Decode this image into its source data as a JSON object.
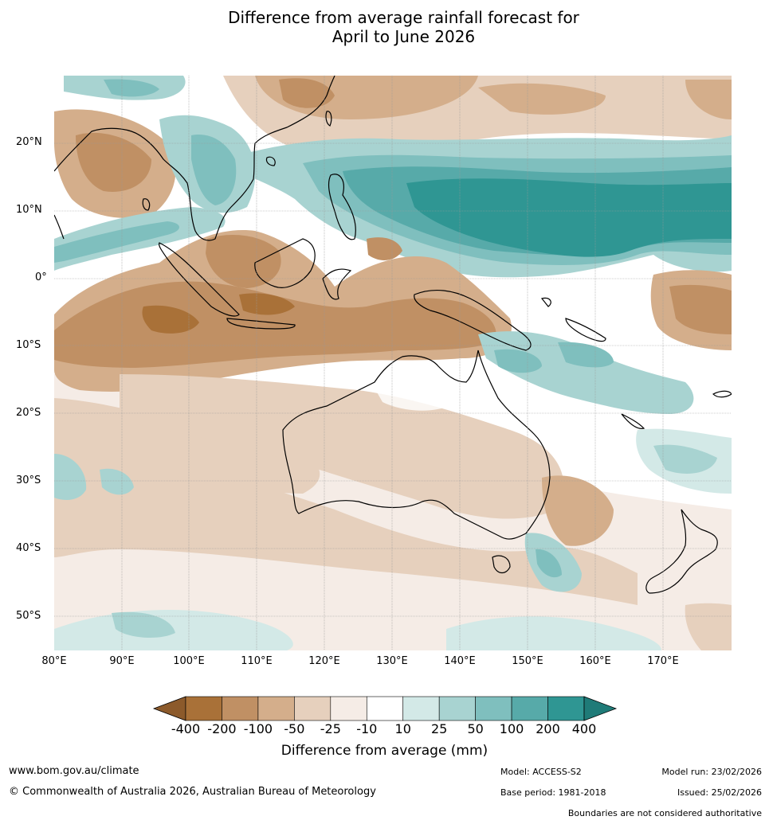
{
  "title": {
    "line1": "Difference from average rainfall forecast for",
    "line2": "April to June 2026"
  },
  "map": {
    "lat_labels": [
      "20°N",
      "10°N",
      "0°",
      "10°S",
      "20°S",
      "30°S",
      "40°S",
      "50°S"
    ],
    "lon_labels": [
      "80°E",
      "90°E",
      "100°E",
      "110°E",
      "120°E",
      "130°E",
      "140°E",
      "150°E",
      "160°E",
      "170°E"
    ]
  },
  "legend": {
    "title": "Difference from average (mm)",
    "ticks": [
      "-400",
      "-200",
      "-100",
      "-50",
      "-25",
      "-10",
      "10",
      "25",
      "50",
      "100",
      "200",
      "400"
    ],
    "colors": [
      "#8c5a2b",
      "#a97138",
      "#c09064",
      "#d4ae8b",
      "#e6d0bd",
      "#f5ece6",
      "#ffffff",
      "#d3e9e7",
      "#a8d3d1",
      "#7fbfbe",
      "#57aaa9",
      "#2f9693",
      "#1f7b78"
    ]
  },
  "footer": {
    "url": "www.bom.gov.au/climate",
    "copyright": "© Commonwealth of Australia 2026, Australian Bureau of Meteorology",
    "model": "Model: ACCESS-S2",
    "base_period": "Base period: 1981-2018",
    "model_run": "Model run: 23/02/2026",
    "issued": "Issued: 25/02/2026",
    "disclaimer": "Boundaries are not considered authoritative"
  }
}
